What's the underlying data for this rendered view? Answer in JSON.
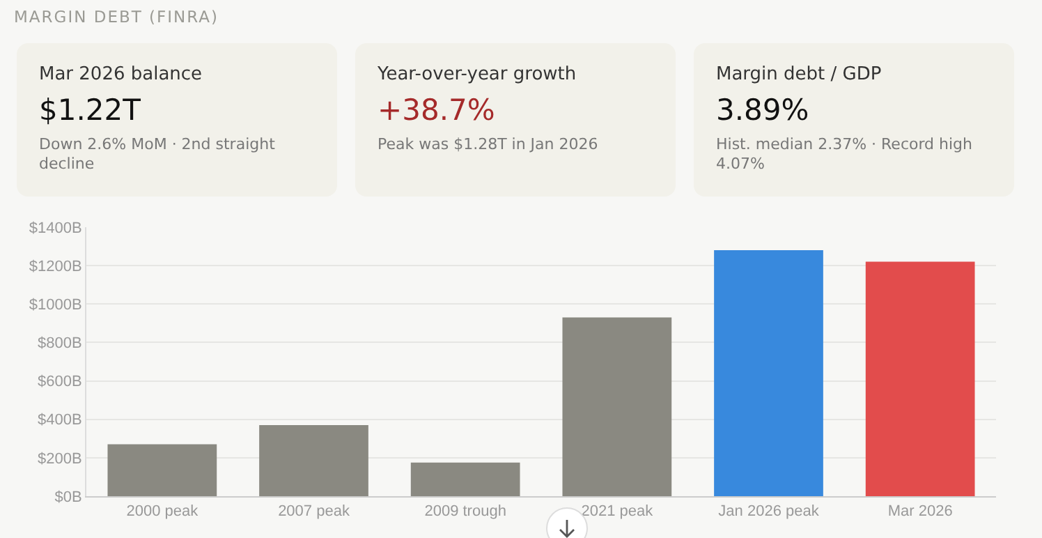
{
  "chart_data": [
    {
      "type": "other",
      "title": "MARGIN DEBT (FINRA)"
    },
    {
      "type": "other",
      "title": "Mar 2026 balance",
      "annotations": [
        "$1.22T",
        "Down 2.6% MoM · 2nd straight decline"
      ]
    },
    {
      "type": "other",
      "title": "Year-over-year growth",
      "color": "#a52a2a",
      "annotations": [
        "+38.7%",
        "Peak was $1.28T in Jan 2026"
      ]
    },
    {
      "type": "other",
      "title": "Margin debt / GDP",
      "annotations": [
        "3.89%",
        "Hist. median 2.37% · Record high 4.07%"
      ]
    },
    {
      "type": "bar",
      "categories": [
        "2000 peak",
        "2007 peak",
        "2009 trough",
        "2021 peak",
        "Jan 2026 peak",
        "Mar 2026"
      ],
      "values": [
        270,
        370,
        175,
        930,
        1280,
        1220
      ],
      "colors": [
        "#8a8981",
        "#8a8981",
        "#8a8981",
        "#8a8981",
        "#3889dd",
        "#e24c4c"
      ],
      "ylim": [
        0,
        1400
      ],
      "yticks": [
        {
          "value": 0,
          "label": "$0B"
        },
        {
          "value": 200,
          "label": "$200B"
        },
        {
          "value": 400,
          "label": "$400B"
        },
        {
          "value": 600,
          "label": "$600B"
        },
        {
          "value": 800,
          "label": "$800B"
        },
        {
          "value": 1000,
          "label": "$1000B"
        },
        {
          "value": 1200,
          "label": "$1200B"
        },
        {
          "value": 1400,
          "label": "$1400B"
        }
      ],
      "grid": "y"
    }
  ]
}
